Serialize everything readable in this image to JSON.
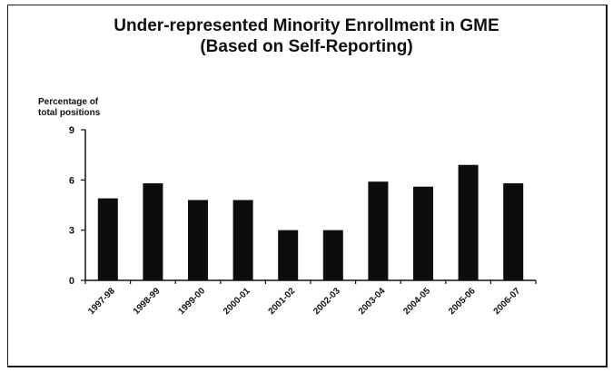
{
  "chart_data": {
    "type": "bar",
    "title": "Under-represented Minority Enrollment in GME",
    "subtitle": "(Based on Self-Reporting)",
    "ylabel_line1": "Percentage of",
    "ylabel_line2": "total positions",
    "xlabel": "",
    "categories": [
      "1997-98",
      "1998-99",
      "1999-00",
      "2000-01",
      "2001-02",
      "2002-03",
      "2003-04",
      "2004-05",
      "2005-06",
      "2006-07"
    ],
    "values": [
      4.9,
      5.8,
      4.8,
      4.8,
      3.0,
      3.0,
      5.9,
      5.6,
      6.9,
      5.8
    ],
    "ylim": [
      0,
      9
    ],
    "yticks": [
      0,
      3,
      6,
      9
    ],
    "grid": false,
    "legend": "none",
    "bar_color": "#0d0d0d"
  }
}
